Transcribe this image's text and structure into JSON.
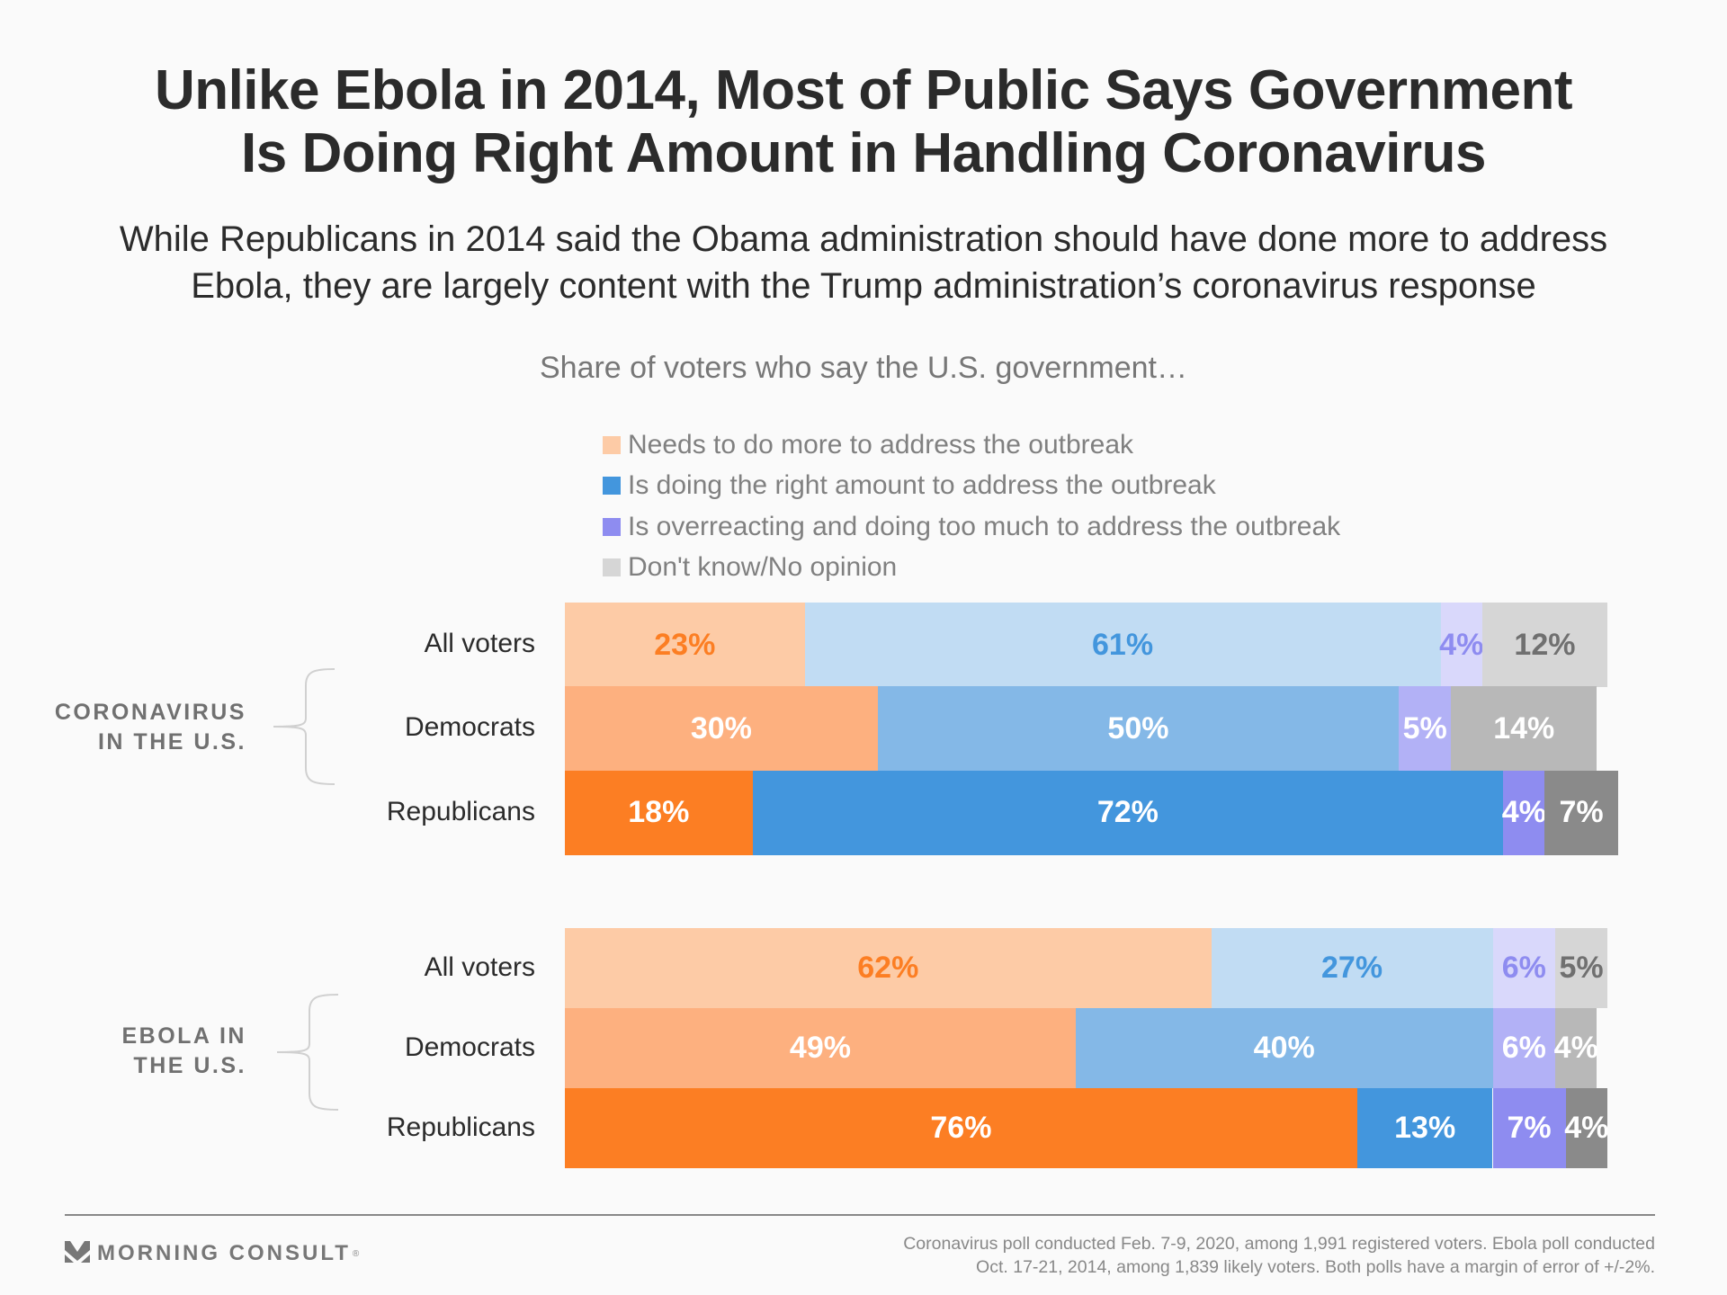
{
  "header": {
    "title_line1": "Unlike Ebola in 2014, Most of Public Says Government",
    "title_line2": "Is Doing Right Amount in Handling Coronavirus",
    "subtitle_line1": "While Republicans in 2014 said the Obama administration should have done more to address",
    "subtitle_line2": "Ebola, they are largely content with the Trump administration’s coronavirus response",
    "question": "Share of voters who say the U.S. government…"
  },
  "chart_data": {
    "type": "bar",
    "orientation": "horizontal",
    "stacked": true,
    "title": "Unlike Ebola in 2014, Most of Public Says Government Is Doing Right Amount in Handling Coronavirus",
    "subtitle": "Share of voters who say the U.S. government…",
    "xlabel": "",
    "ylabel": "",
    "xlim": [
      0,
      100
    ],
    "grid": false,
    "legend_position": "top",
    "legend": [
      {
        "key": "more",
        "label": "Needs to do more to address the outbreak",
        "color": "#fdcba6"
      },
      {
        "key": "right",
        "label": "Is doing the right amount to address the outbreak",
        "color": "#4396dd"
      },
      {
        "key": "over",
        "label": "Is overreacting and doing too much to address the outbreak",
        "color": "#8e8cf0"
      },
      {
        "key": "dk",
        "label": "Don't know/No opinion",
        "color": "#d6d6d6"
      }
    ],
    "groups": [
      {
        "name": "CORONAVIRUS IN THE U.S.",
        "label_line1": "CORONAVIRUS",
        "label_line2": "IN THE U.S.",
        "categories": [
          "All voters",
          "Democrats",
          "Republicans"
        ],
        "series": [
          {
            "name": "Needs to do more to address the outbreak",
            "values": [
              23,
              30,
              18
            ]
          },
          {
            "name": "Is doing the right amount to address the outbreak",
            "values": [
              61,
              50,
              72
            ]
          },
          {
            "name": "Is overreacting and doing too much to address the outbreak",
            "values": [
              4,
              5,
              4
            ]
          },
          {
            "name": "Don't know/No opinion",
            "values": [
              12,
              14,
              7
            ]
          }
        ]
      },
      {
        "name": "EBOLA IN THE U.S.",
        "label_line1": "EBOLA IN",
        "label_line2": "THE U.S.",
        "categories": [
          "All voters",
          "Democrats",
          "Republicans"
        ],
        "series": [
          {
            "name": "Needs to do more to address the outbreak",
            "values": [
              62,
              49,
              76
            ]
          },
          {
            "name": "Is doing the right amount to address the outbreak",
            "values": [
              27,
              40,
              13
            ]
          },
          {
            "name": "Is overreacting and doing too much to address the outbreak",
            "values": [
              6,
              6,
              7
            ]
          },
          {
            "name": "Don't know/No opinion",
            "values": [
              5,
              4,
              4
            ]
          }
        ]
      }
    ],
    "row_colors": {
      "All voters": {
        "fills": [
          "#fdcba6",
          "#c1dcf3",
          "#d9d8fb",
          "#d6d6d6"
        ],
        "text": [
          "#fc7e23",
          "#4396dd",
          "#8e8cf0",
          "#707070"
        ]
      },
      "Democrats": {
        "fills": [
          "#fdb07f",
          "#84b8e7",
          "#b2b1f6",
          "#b8b8b8"
        ],
        "text": [
          "#ffffff",
          "#ffffff",
          "#ffffff",
          "#ffffff"
        ]
      },
      "Republicans": {
        "fills": [
          "#fc7e23",
          "#4396dd",
          "#8e8cf0",
          "#8a8a8a"
        ],
        "text": [
          "#ffffff",
          "#ffffff",
          "#ffffff",
          "#ffffff"
        ]
      }
    }
  },
  "footer": {
    "brand": "MORNING CONSULT",
    "brand_mark": "®",
    "note_line1": "Coronavirus poll conducted Feb. 7-9, 2020, among 1,991 registered voters. Ebola poll conducted",
    "note_line2": "Oct. 17-21, 2014, among 1,839 likely voters. Both polls have a margin of error of +/-2%."
  }
}
